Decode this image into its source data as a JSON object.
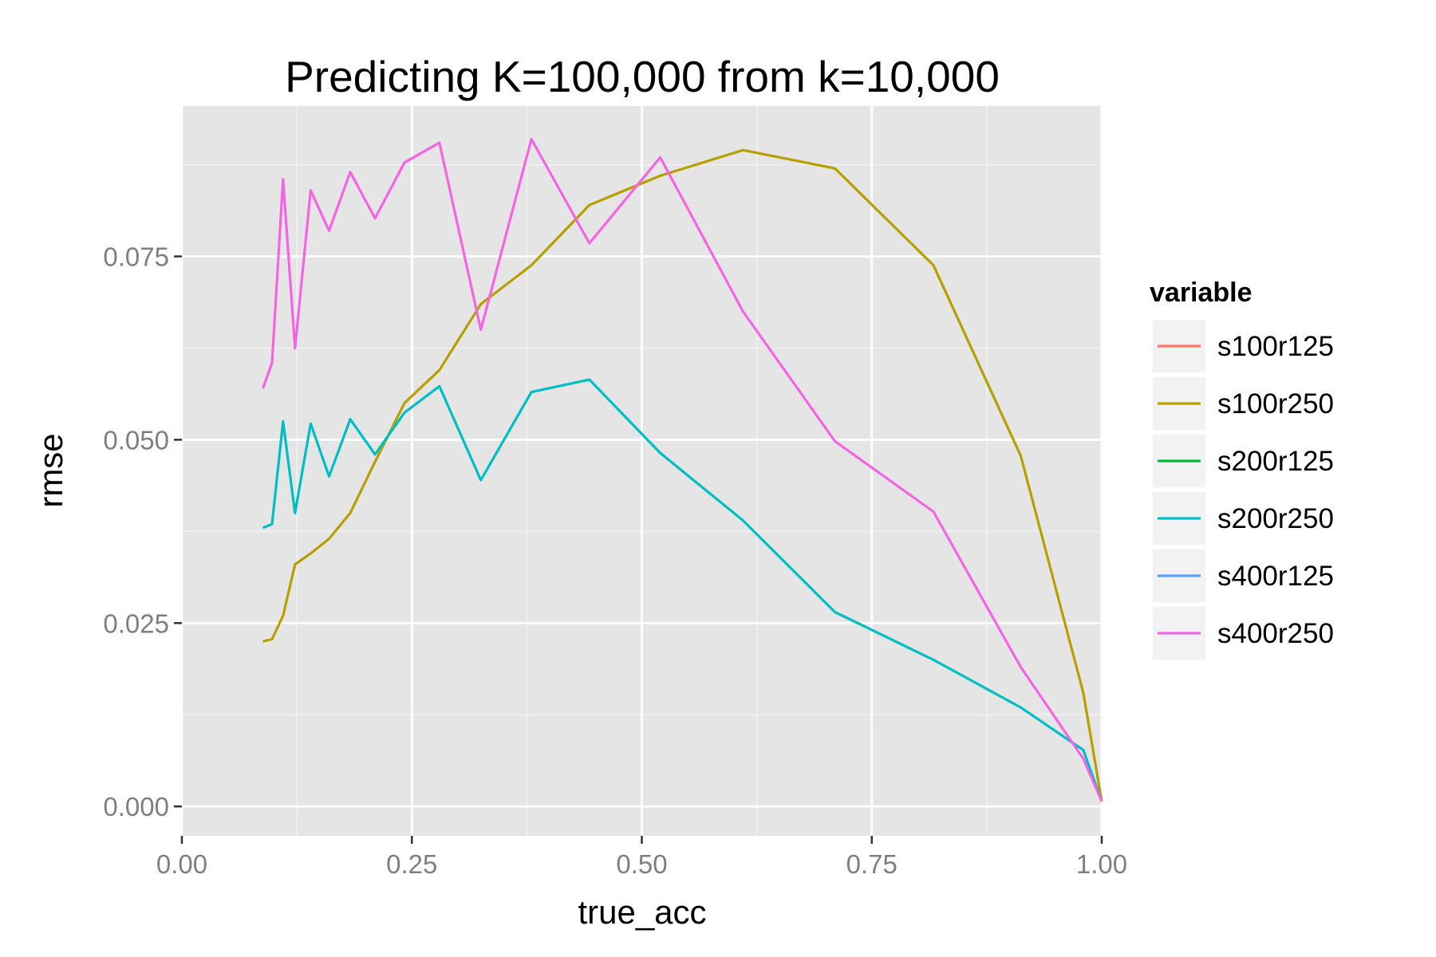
{
  "chart_data": {
    "type": "line",
    "title": "Predicting K=100,000 from k=10,000",
    "xlabel": "true_acc",
    "ylabel": "rmse",
    "xlim": [
      0,
      1
    ],
    "ylim": [
      -0.004,
      0.0955
    ],
    "x_ticks": [
      0,
      0.25,
      0.5,
      0.75,
      1
    ],
    "x_tick_labels": [
      "0.00",
      "0.25",
      "0.50",
      "0.75",
      "1.00"
    ],
    "y_ticks": [
      0,
      0.025,
      0.05,
      0.075
    ],
    "y_tick_labels": [
      "0.000",
      "0.025",
      "0.050",
      "0.075"
    ],
    "grid": true,
    "legend": {
      "title": "variable",
      "position": "right"
    },
    "series": [
      {
        "name": "s100r125",
        "color": "#F8766D",
        "x": [],
        "y": []
      },
      {
        "name": "s100r250",
        "color": "#B79F00",
        "x": [
          0.088,
          0.098,
          0.11,
          0.123,
          0.14,
          0.16,
          0.183,
          0.21,
          0.242,
          0.28,
          0.325,
          0.38,
          0.443,
          0.52,
          0.61,
          0.71,
          0.817,
          0.912,
          0.98,
          1.0
        ],
        "y": [
          0.0225,
          0.0228,
          0.026,
          0.033,
          0.0345,
          0.0365,
          0.04,
          0.047,
          0.055,
          0.0595,
          0.0685,
          0.0738,
          0.082,
          0.086,
          0.0895,
          0.087,
          0.0738,
          0.0478,
          0.0155,
          0.0007
        ]
      },
      {
        "name": "s200r125",
        "color": "#00BA38",
        "x": [],
        "y": []
      },
      {
        "name": "s200r250",
        "color": "#00BFC4",
        "x": [
          0.088,
          0.098,
          0.11,
          0.123,
          0.14,
          0.16,
          0.183,
          0.21,
          0.242,
          0.28,
          0.325,
          0.38,
          0.443,
          0.52,
          0.61,
          0.71,
          0.817,
          0.912,
          0.98,
          1.0
        ],
        "y": [
          0.038,
          0.0385,
          0.0525,
          0.04,
          0.0522,
          0.045,
          0.0528,
          0.048,
          0.0537,
          0.0573,
          0.0445,
          0.0565,
          0.0582,
          0.0482,
          0.039,
          0.0265,
          0.02,
          0.0135,
          0.0077,
          0.0007
        ]
      },
      {
        "name": "s400r125",
        "color": "#619CFF",
        "x": [],
        "y": []
      },
      {
        "name": "s400r250",
        "color": "#F564E3",
        "x": [
          0.088,
          0.098,
          0.11,
          0.123,
          0.14,
          0.16,
          0.183,
          0.21,
          0.242,
          0.28,
          0.325,
          0.38,
          0.443,
          0.52,
          0.61,
          0.71,
          0.817,
          0.912,
          0.98,
          1.0
        ],
        "y": [
          0.057,
          0.0605,
          0.0855,
          0.0625,
          0.084,
          0.0785,
          0.0865,
          0.0802,
          0.0878,
          0.0905,
          0.065,
          0.091,
          0.0768,
          0.0885,
          0.0675,
          0.0498,
          0.0402,
          0.019,
          0.0065,
          0.0007
        ]
      }
    ]
  }
}
